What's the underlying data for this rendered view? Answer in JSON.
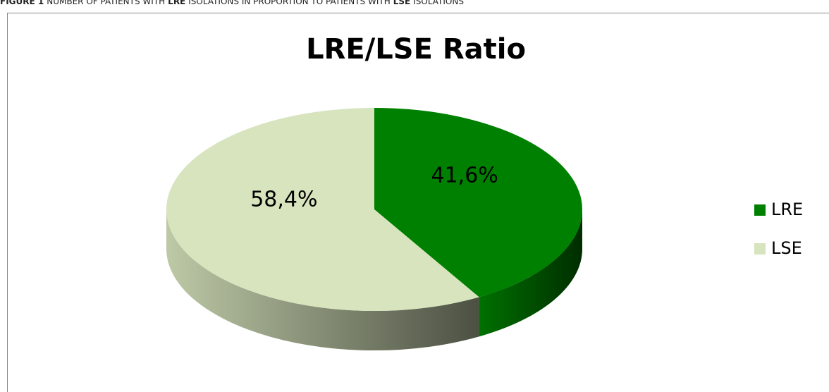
{
  "caption": [
    "FIGURE 1",
    "NUMBER OF PATIENTS WITH",
    "LRE",
    "ISOLATIONS IN PROPORTION TO PATIENTS WITH",
    "LSE",
    "ISOLATIONS"
  ],
  "chart_data": {
    "type": "pie",
    "title": "LRE/LSE Ratio",
    "categories": [
      "LRE",
      "LSE"
    ],
    "values": [
      41.6,
      58.4
    ],
    "value_labels": [
      "41,6%",
      "58,4%"
    ],
    "colors": [
      "#008000",
      "#d7e4bd"
    ],
    "legend": "right"
  }
}
